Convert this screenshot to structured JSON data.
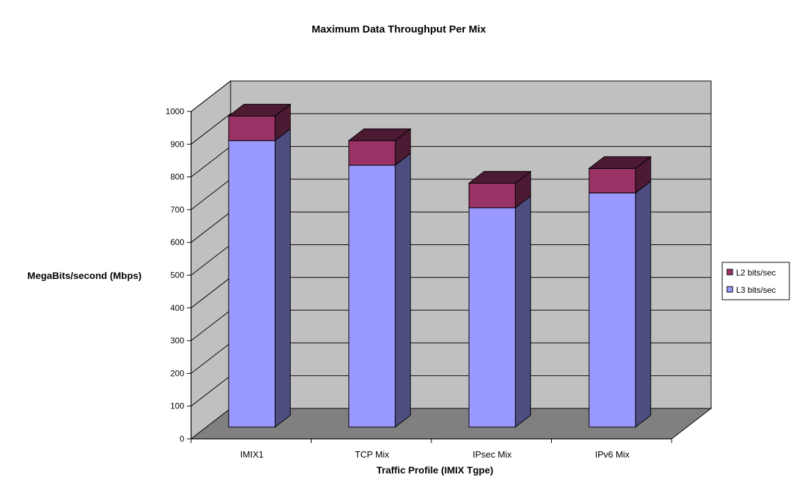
{
  "chart_data": {
    "type": "bar",
    "stacked": true,
    "style": "3d",
    "title": "Maximum Data Throughput Per Mix",
    "xlabel": "Traffic Profile (IMIX Tgpe)",
    "ylabel": "MegaBits/second (Mbps)",
    "categories": [
      "IMIX1",
      "TCP Mix",
      "IPsec Mix",
      "IPv6 Mix"
    ],
    "series": [
      {
        "name": "L3 bits/sec",
        "values": [
          875,
          800,
          670,
          715
        ],
        "color": "#9999ff",
        "side_color": "#4d4d80"
      },
      {
        "name": "L2 bits/sec",
        "values": [
          75,
          75,
          75,
          75
        ],
        "color": "#993366",
        "side_color": "#4d1a33"
      }
    ],
    "legend_order": [
      "L2 bits/sec",
      "L3 bits/sec"
    ],
    "ylim": [
      0,
      1000
    ],
    "yticks": [
      0,
      100,
      200,
      300,
      400,
      500,
      600,
      700,
      800,
      900,
      1000
    ],
    "grid": true,
    "legend_position": "right",
    "wall_color": "#c0c0c0",
    "floor_color": "#808080"
  }
}
